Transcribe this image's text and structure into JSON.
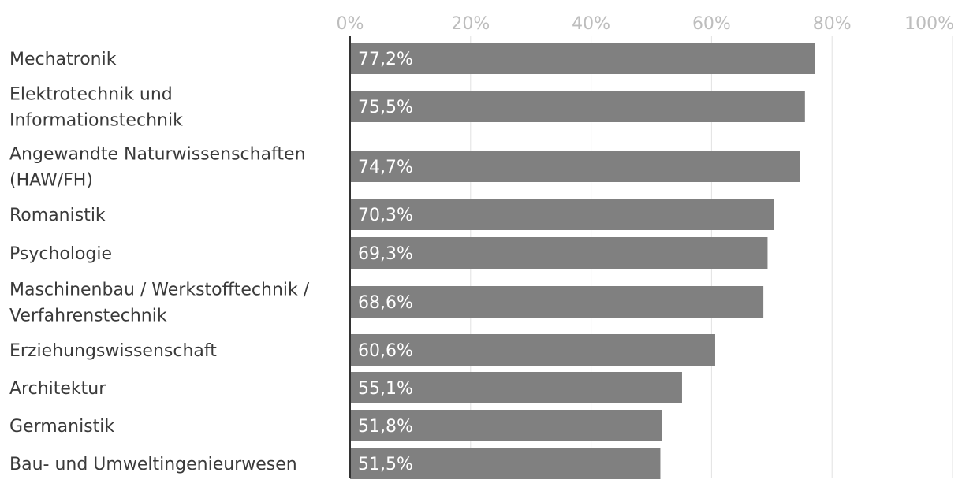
{
  "chart_data": {
    "type": "bar",
    "orientation": "horizontal",
    "title": "",
    "xlabel": "",
    "ylabel": "",
    "xlim": [
      0,
      100
    ],
    "grid": true,
    "value_format": "percent-comma",
    "tick_values": [
      0,
      20,
      40,
      60,
      80,
      100
    ],
    "tick_labels": [
      "0%",
      "20%",
      "40%",
      "60%",
      "80%",
      "100%"
    ],
    "categories": [
      [
        "Mechatronik"
      ],
      [
        "Elektrotechnik und",
        "Informationstechnik"
      ],
      [
        "Angewandte Naturwissenschaften",
        "(HAW/FH)"
      ],
      [
        "Romanistik"
      ],
      [
        "Psychologie"
      ],
      [
        "Maschinenbau / Werkstofftechnik /",
        "Verfahrenstechnik"
      ],
      [
        "Erziehungswissenschaft"
      ],
      [
        "Architektur"
      ],
      [
        "Germanistik"
      ],
      [
        "Bau- und Umweltingenieurwesen"
      ]
    ],
    "values": [
      77.2,
      75.5,
      74.7,
      70.3,
      69.3,
      68.6,
      60.6,
      55.1,
      51.8,
      51.5
    ],
    "value_labels": [
      "77,2%",
      "75,5%",
      "74,7%",
      "70,3%",
      "69,3%",
      "68,6%",
      "60,6%",
      "55,1%",
      "51,8%",
      "51,5%"
    ],
    "colors": {
      "bar": "#808080",
      "grid": "#e2e2e2",
      "axis": "#333333",
      "tick_text": "#bdbdbd",
      "label_text": "#3a3a3a",
      "bar_text": "#ffffff"
    }
  }
}
